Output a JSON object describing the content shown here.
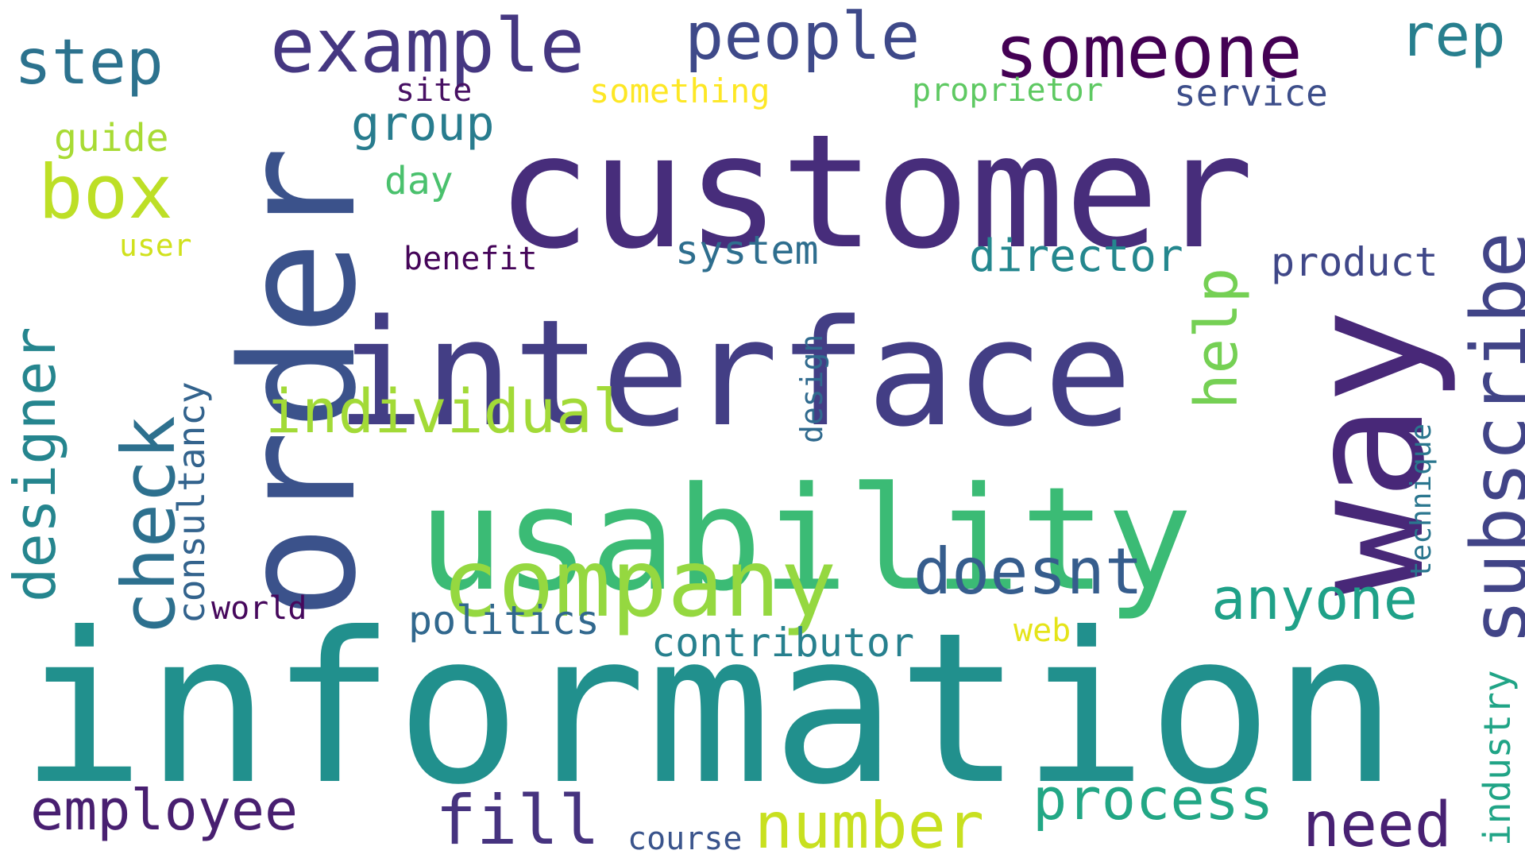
{
  "words": [
    {
      "text": "information",
      "color": "#21908d"
    },
    {
      "text": "customer",
      "color": "#472d7b"
    },
    {
      "text": "interface",
      "color": "#433e85"
    },
    {
      "text": "usability",
      "color": "#3bbb75"
    },
    {
      "text": "order",
      "color": "#3b528b"
    },
    {
      "text": "way",
      "color": "#482878"
    },
    {
      "text": "company",
      "color": "#95d840"
    },
    {
      "text": "subscribe",
      "color": "#414487"
    },
    {
      "text": "example",
      "color": "#453781"
    },
    {
      "text": "someone",
      "color": "#440154"
    },
    {
      "text": "people",
      "color": "#3e4989"
    },
    {
      "text": "step",
      "color": "#2c728e"
    },
    {
      "text": "rep",
      "color": "#277f8e"
    },
    {
      "text": "box",
      "color": "#bddf26"
    },
    {
      "text": "check",
      "color": "#2d708e"
    },
    {
      "text": "designer",
      "color": "#25858e"
    },
    {
      "text": "individual",
      "color": "#a2da37"
    },
    {
      "text": "doesnt",
      "color": "#365d8d"
    },
    {
      "text": "anyone",
      "color": "#1fa188"
    },
    {
      "text": "help",
      "color": "#75d054"
    },
    {
      "text": "director",
      "color": "#24878e"
    },
    {
      "text": "product",
      "color": "#3f4788"
    },
    {
      "text": "system",
      "color": "#2e6e8e"
    },
    {
      "text": "group",
      "color": "#287c8e"
    },
    {
      "text": "employee",
      "color": "#481f70"
    },
    {
      "text": "fill",
      "color": "#46337f"
    },
    {
      "text": "number",
      "color": "#c8e020"
    },
    {
      "text": "process",
      "color": "#22a785"
    },
    {
      "text": "need",
      "color": "#482173"
    },
    {
      "text": "consultancy",
      "color": "#33638d"
    },
    {
      "text": "politics",
      "color": "#31688e"
    },
    {
      "text": "contributor",
      "color": "#27808e"
    },
    {
      "text": "industry",
      "color": "#20a486"
    },
    {
      "text": "technique",
      "color": "#2a768e"
    },
    {
      "text": "design",
      "color": "#306a8e"
    },
    {
      "text": "guide",
      "color": "#a8db34"
    },
    {
      "text": "day",
      "color": "#4ac16d"
    },
    {
      "text": "service",
      "color": "#3d4e8a"
    },
    {
      "text": "proprietor",
      "color": "#5ec962"
    },
    {
      "text": "something",
      "color": "#fde725"
    },
    {
      "text": "site",
      "color": "#471063"
    },
    {
      "text": "user",
      "color": "#d0e11c"
    },
    {
      "text": "benefit",
      "color": "#450559"
    },
    {
      "text": "world",
      "color": "#46085c"
    },
    {
      "text": "web",
      "color": "#e5e419"
    },
    {
      "text": "course",
      "color": "#3a548c"
    }
  ]
}
